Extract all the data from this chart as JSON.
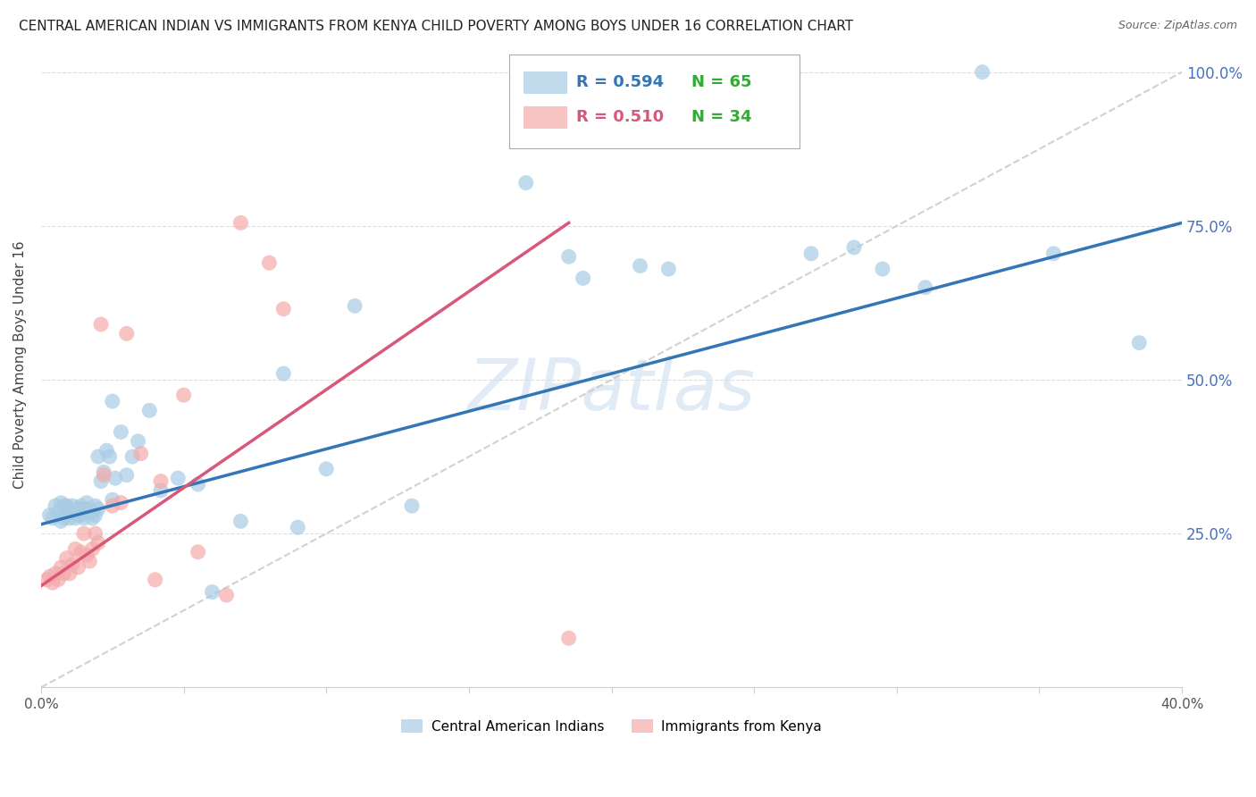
{
  "title": "CENTRAL AMERICAN INDIAN VS IMMIGRANTS FROM KENYA CHILD POVERTY AMONG BOYS UNDER 16 CORRELATION CHART",
  "source": "Source: ZipAtlas.com",
  "ylabel": "Child Poverty Among Boys Under 16",
  "ytick_labels": [
    "100.0%",
    "75.0%",
    "50.0%",
    "25.0%"
  ],
  "ytick_values": [
    1.0,
    0.75,
    0.5,
    0.25
  ],
  "legend_blue_r": "0.594",
  "legend_blue_n": "65",
  "legend_pink_r": "0.510",
  "legend_pink_n": "34",
  "blue_color": "#a8cce4",
  "pink_color": "#f4aaaa",
  "blue_line_color": "#3375b5",
  "pink_line_color": "#d9587a",
  "blue_label": "Central American Indians",
  "pink_label": "Immigrants from Kenya",
  "blue_scatter_x": [
    0.003,
    0.004,
    0.005,
    0.006,
    0.007,
    0.007,
    0.008,
    0.008,
    0.009,
    0.009,
    0.01,
    0.01,
    0.011,
    0.011,
    0.012,
    0.012,
    0.013,
    0.013,
    0.014,
    0.014,
    0.015,
    0.015,
    0.016,
    0.016,
    0.017,
    0.018,
    0.018,
    0.019,
    0.019,
    0.02,
    0.02,
    0.021,
    0.022,
    0.023,
    0.024,
    0.025,
    0.025,
    0.026,
    0.028,
    0.03,
    0.032,
    0.034,
    0.038,
    0.042,
    0.048,
    0.055,
    0.06,
    0.07,
    0.085,
    0.09,
    0.1,
    0.11,
    0.13,
    0.17,
    0.185,
    0.19,
    0.21,
    0.22,
    0.27,
    0.285,
    0.295,
    0.31,
    0.33,
    0.355,
    0.385
  ],
  "blue_scatter_y": [
    0.28,
    0.275,
    0.295,
    0.285,
    0.3,
    0.27,
    0.295,
    0.275,
    0.285,
    0.295,
    0.29,
    0.275,
    0.285,
    0.295,
    0.285,
    0.275,
    0.28,
    0.29,
    0.295,
    0.28,
    0.29,
    0.275,
    0.3,
    0.29,
    0.285,
    0.275,
    0.285,
    0.295,
    0.28,
    0.375,
    0.29,
    0.335,
    0.35,
    0.385,
    0.375,
    0.305,
    0.465,
    0.34,
    0.415,
    0.345,
    0.375,
    0.4,
    0.45,
    0.32,
    0.34,
    0.33,
    0.155,
    0.27,
    0.51,
    0.26,
    0.355,
    0.62,
    0.295,
    0.82,
    0.7,
    0.665,
    0.685,
    0.68,
    0.705,
    0.715,
    0.68,
    0.65,
    1.0,
    0.705,
    0.56
  ],
  "pink_scatter_x": [
    0.002,
    0.003,
    0.004,
    0.005,
    0.006,
    0.007,
    0.008,
    0.009,
    0.01,
    0.011,
    0.012,
    0.013,
    0.014,
    0.015,
    0.016,
    0.017,
    0.018,
    0.019,
    0.02,
    0.021,
    0.022,
    0.025,
    0.028,
    0.03,
    0.035,
    0.04,
    0.042,
    0.05,
    0.055,
    0.065,
    0.07,
    0.08,
    0.085,
    0.185
  ],
  "pink_scatter_y": [
    0.175,
    0.18,
    0.17,
    0.185,
    0.175,
    0.195,
    0.185,
    0.21,
    0.185,
    0.2,
    0.225,
    0.195,
    0.22,
    0.25,
    0.215,
    0.205,
    0.225,
    0.25,
    0.235,
    0.59,
    0.345,
    0.295,
    0.3,
    0.575,
    0.38,
    0.175,
    0.335,
    0.475,
    0.22,
    0.15,
    0.755,
    0.69,
    0.615,
    0.08
  ],
  "xlim": [
    0.0,
    0.4
  ],
  "ylim": [
    0.0,
    1.05
  ],
  "blue_line_x0": 0.0,
  "blue_line_y0": 0.265,
  "blue_line_x1": 0.4,
  "blue_line_y1": 0.755,
  "pink_line_x0": 0.0,
  "pink_line_y0": 0.165,
  "pink_line_x1": 0.185,
  "pink_line_y1": 0.755,
  "diag_color": "#cccccc",
  "grid_color": "#dddddd",
  "watermark_text": "ZIPatlas",
  "watermark_color": "#ccdff0",
  "title_fontsize": 11,
  "source_fontsize": 9,
  "axis_label_color": "#555555",
  "right_tick_color": "#4472c4"
}
